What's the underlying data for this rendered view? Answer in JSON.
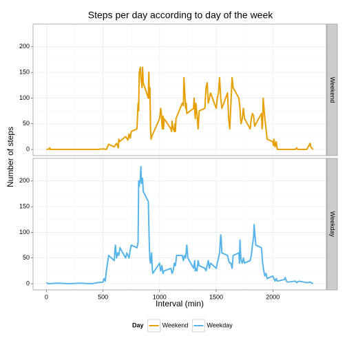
{
  "chart_data": [
    {
      "type": "line",
      "title": "Steps per day according to day of the week",
      "ylabel": "Number of steps",
      "facet": "Weekend",
      "x": [
        0,
        25,
        30,
        35,
        100,
        200,
        300,
        400,
        450,
        500,
        530,
        550,
        600,
        620,
        635,
        640,
        645,
        700,
        720,
        730,
        740,
        750,
        800,
        810,
        815,
        820,
        830,
        835,
        845,
        850,
        855,
        900,
        905,
        910,
        915,
        920,
        925,
        930,
        1000,
        1010,
        1015,
        1020,
        1025,
        1030,
        1035,
        1040,
        1100,
        1105,
        1110,
        1120,
        1130,
        1135,
        1140,
        1145,
        1200,
        1210,
        1215,
        1220,
        1230,
        1235,
        1240,
        1300,
        1305,
        1310,
        1315,
        1320,
        1330,
        1340,
        1350,
        1400,
        1410,
        1420,
        1430,
        1440,
        1450,
        1500,
        1510,
        1520,
        1530,
        1540,
        1550,
        1600,
        1610,
        1620,
        1630,
        1640,
        1650,
        1700,
        1710,
        1715,
        1720,
        1730,
        1740,
        1750,
        1800,
        1810,
        1820,
        1830,
        1840,
        1850,
        1900,
        1905,
        1910,
        1915,
        1920,
        1930,
        1940,
        1950,
        2000,
        2005,
        2010,
        2020,
        2030,
        2040,
        2100,
        2200,
        2210,
        2220,
        2300,
        2330,
        2335,
        2355
      ],
      "series": [
        {
          "name": "Weekend",
          "color": "#E69F00",
          "values": [
            0,
            1,
            3,
            0,
            0,
            0,
            0,
            0,
            0,
            1,
            0,
            10,
            5,
            12,
            3,
            20,
            15,
            25,
            18,
            30,
            22,
            35,
            40,
            90,
            75,
            150,
            160,
            140,
            120,
            160,
            130,
            100,
            150,
            100,
            120,
            40,
            20,
            25,
            60,
            80,
            70,
            50,
            40,
            65,
            40,
            60,
            40,
            35,
            55,
            40,
            35,
            50,
            35,
            60,
            90,
            85,
            140,
            120,
            80,
            90,
            70,
            80,
            100,
            75,
            60,
            90,
            70,
            40,
            75,
            80,
            120,
            130,
            90,
            100,
            110,
            80,
            100,
            110,
            140,
            100,
            80,
            110,
            60,
            40,
            90,
            140,
            120,
            100,
            80,
            60,
            50,
            60,
            80,
            60,
            40,
            60,
            70,
            65,
            45,
            50,
            70,
            40,
            50,
            100,
            85,
            60,
            40,
            20,
            15,
            8,
            20,
            5,
            15,
            0,
            0,
            0,
            3,
            0,
            0,
            12,
            5,
            0
          ]
        }
      ],
      "xlim": [
        -117.75,
        2472.75
      ],
      "xticks": [
        0,
        500,
        1000,
        1500,
        2000
      ],
      "ylim": [
        -12,
        244
      ],
      "yticks": [
        0,
        50,
        100,
        150,
        200
      ],
      "grid": true
    },
    {
      "type": "line",
      "xlabel": "Interval (min)",
      "facet": "Weekday",
      "legend_title": "Day",
      "legend_position": "bottom",
      "x": [
        0,
        20,
        100,
        200,
        300,
        400,
        450,
        500,
        510,
        520,
        530,
        550,
        600,
        605,
        610,
        620,
        630,
        640,
        650,
        700,
        710,
        720,
        730,
        740,
        750,
        800,
        810,
        815,
        820,
        830,
        835,
        840,
        850,
        855,
        900,
        910,
        915,
        920,
        930,
        935,
        940,
        1000,
        1005,
        1010,
        1020,
        1030,
        1040,
        1100,
        1110,
        1120,
        1130,
        1140,
        1150,
        1200,
        1210,
        1220,
        1230,
        1240,
        1250,
        1300,
        1310,
        1315,
        1320,
        1330,
        1340,
        1350,
        1400,
        1410,
        1420,
        1430,
        1440,
        1450,
        1500,
        1510,
        1520,
        1530,
        1540,
        1545,
        1550,
        1600,
        1610,
        1620,
        1630,
        1640,
        1650,
        1700,
        1705,
        1710,
        1715,
        1720,
        1730,
        1740,
        1750,
        1800,
        1810,
        1820,
        1830,
        1835,
        1840,
        1850,
        1900,
        1910,
        1920,
        1930,
        1940,
        1950,
        2000,
        2010,
        2020,
        2030,
        2040,
        2100,
        2110,
        2120,
        2130,
        2200,
        2210,
        2230,
        2300,
        2330,
        2355
      ],
      "series": [
        {
          "name": "Weekday",
          "color": "#56B4E9",
          "values": [
            2,
            0,
            1,
            0,
            1,
            0,
            2,
            3,
            10,
            5,
            25,
            55,
            45,
            65,
            75,
            50,
            60,
            55,
            70,
            50,
            60,
            55,
            50,
            65,
            75,
            70,
            80,
            200,
            190,
            205,
            228,
            195,
            205,
            180,
            160,
            70,
            45,
            40,
            60,
            30,
            20,
            40,
            30,
            25,
            35,
            20,
            25,
            30,
            20,
            25,
            40,
            35,
            55,
            55,
            45,
            55,
            50,
            75,
            50,
            30,
            45,
            25,
            30,
            25,
            45,
            35,
            30,
            25,
            35,
            45,
            30,
            40,
            30,
            40,
            50,
            60,
            95,
            85,
            60,
            55,
            45,
            40,
            40,
            30,
            55,
            60,
            40,
            85,
            60,
            45,
            40,
            50,
            40,
            45,
            55,
            75,
            90,
            115,
            100,
            75,
            70,
            40,
            25,
            15,
            20,
            10,
            15,
            10,
            5,
            10,
            5,
            8,
            12,
            5,
            3,
            5,
            2,
            5,
            2,
            3,
            0
          ]
        }
      ],
      "xlim": [
        -117.75,
        2472.75
      ],
      "xticks": [
        0,
        500,
        1000,
        1500,
        2000
      ],
      "ylim": [
        -12,
        244
      ],
      "yticks": [
        0,
        50,
        100,
        150,
        200
      ],
      "grid": true
    }
  ]
}
